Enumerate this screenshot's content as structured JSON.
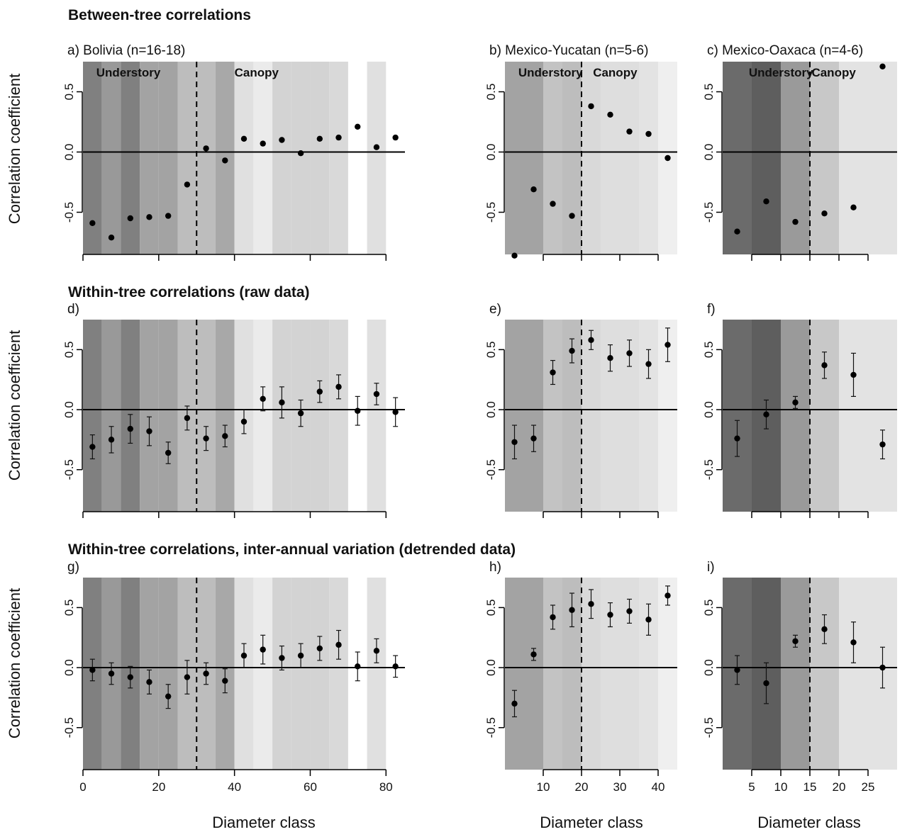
{
  "figure": {
    "row_titles": [
      "Between-tree correlations",
      "Within-tree correlations (raw data)",
      "Within-tree correlations, inter-annual variation (detrended data)"
    ],
    "ylabel": "Correlation coefficient",
    "xlabel": "Diameter class",
    "zone_labels": {
      "understory": "Understory",
      "canopy": "Canopy"
    }
  },
  "chart_data": [
    {
      "id": "a",
      "type": "scatter",
      "title": "a) Bolivia (n=16-18)",
      "xlim": [
        0,
        85
      ],
      "ylim": [
        -0.85,
        0.75
      ],
      "yticks": [
        -0.5,
        0.0,
        0.5
      ],
      "xticks": [],
      "canopy_threshold": 30,
      "x": [
        2.5,
        7.5,
        12.5,
        17.5,
        22.5,
        27.5,
        32.5,
        37.5,
        42.5,
        47.5,
        52.5,
        57.5,
        62.5,
        67.5,
        72.5,
        77.5,
        82.5
      ],
      "y": [
        -0.59,
        -0.71,
        -0.55,
        -0.54,
        -0.53,
        -0.27,
        0.03,
        -0.07,
        0.11,
        0.07,
        0.1,
        -0.01,
        0.11,
        0.12,
        0.21,
        0.04,
        0.12
      ]
    },
    {
      "id": "b",
      "type": "scatter",
      "title": "b) Mexico-Yucatan (n=5-6)",
      "xlim": [
        0,
        45
      ],
      "ylim": [
        -0.85,
        0.75
      ],
      "yticks": [
        -0.5,
        0.0,
        0.5
      ],
      "xticks": [],
      "canopy_threshold": 20,
      "x": [
        2.5,
        7.5,
        12.5,
        17.5,
        22.5,
        27.5,
        32.5,
        37.5,
        42.5
      ],
      "y": [
        -0.86,
        -0.31,
        -0.43,
        -0.53,
        0.38,
        0.31,
        0.17,
        0.15,
        -0.05
      ]
    },
    {
      "id": "c",
      "type": "scatter",
      "title": "c) Mexico-Oaxaca (n=4-6)",
      "xlim": [
        0,
        30
      ],
      "ylim": [
        -0.85,
        0.75
      ],
      "yticks": [
        -0.5,
        0.0,
        0.5
      ],
      "xticks": [],
      "canopy_threshold": 15,
      "x": [
        2.5,
        7.5,
        12.5,
        17.5,
        22.5,
        27.5
      ],
      "y": [
        -0.66,
        -0.41,
        -0.58,
        -0.51,
        -0.46,
        0.71
      ]
    },
    {
      "id": "d",
      "type": "scatter",
      "title": "d)",
      "xlim": [
        0,
        85
      ],
      "ylim": [
        -0.85,
        0.75
      ],
      "yticks": [
        -0.5,
        0.0,
        0.5
      ],
      "xticks": [],
      "canopy_threshold": 30,
      "x": [
        2.5,
        7.5,
        12.5,
        17.5,
        22.5,
        27.5,
        32.5,
        37.5,
        42.5,
        47.5,
        52.5,
        57.5,
        62.5,
        67.5,
        72.5,
        77.5,
        82.5
      ],
      "y": [
        -0.31,
        -0.25,
        -0.16,
        -0.18,
        -0.36,
        -0.07,
        -0.24,
        -0.22,
        -0.1,
        0.09,
        0.06,
        -0.03,
        0.15,
        0.19,
        -0.01,
        0.13,
        -0.02
      ],
      "err": [
        0.1,
        0.11,
        0.12,
        0.12,
        0.09,
        0.1,
        0.1,
        0.09,
        0.1,
        0.1,
        0.13,
        0.11,
        0.09,
        0.1,
        0.12,
        0.09,
        0.12
      ]
    },
    {
      "id": "e",
      "type": "scatter",
      "title": "e)",
      "xlim": [
        0,
        45
      ],
      "ylim": [
        -0.85,
        0.75
      ],
      "yticks": [
        -0.5,
        0.0,
        0.5
      ],
      "xticks": [],
      "canopy_threshold": 20,
      "x": [
        2.5,
        7.5,
        12.5,
        17.5,
        22.5,
        27.5,
        32.5,
        37.5,
        42.5
      ],
      "y": [
        -0.27,
        -0.24,
        0.31,
        0.49,
        0.58,
        0.43,
        0.47,
        0.38,
        0.54
      ],
      "err": [
        0.14,
        0.11,
        0.1,
        0.1,
        0.08,
        0.11,
        0.11,
        0.12,
        0.14
      ]
    },
    {
      "id": "f",
      "type": "scatter",
      "title": "f)",
      "xlim": [
        0,
        30
      ],
      "ylim": [
        -0.85,
        0.75
      ],
      "yticks": [
        -0.5,
        0.0,
        0.5
      ],
      "xticks": [],
      "canopy_threshold": 15,
      "x": [
        2.5,
        7.5,
        12.5,
        17.5,
        22.5,
        27.5
      ],
      "y": [
        -0.24,
        -0.04,
        0.06,
        0.37,
        0.29,
        -0.29
      ],
      "err": [
        0.15,
        0.12,
        0.05,
        0.11,
        0.18,
        0.12
      ]
    },
    {
      "id": "g",
      "type": "scatter",
      "title": "g)",
      "xlim": [
        0,
        85
      ],
      "ylim": [
        -0.85,
        0.75
      ],
      "yticks": [
        -0.5,
        0.0,
        0.5
      ],
      "xticks": [
        0,
        20,
        40,
        60,
        80
      ],
      "canopy_threshold": 30,
      "x": [
        2.5,
        7.5,
        12.5,
        17.5,
        22.5,
        27.5,
        32.5,
        37.5,
        42.5,
        47.5,
        52.5,
        57.5,
        62.5,
        67.5,
        72.5,
        77.5,
        82.5
      ],
      "y": [
        -0.02,
        -0.05,
        -0.08,
        -0.12,
        -0.24,
        -0.08,
        -0.05,
        -0.11,
        0.1,
        0.15,
        0.08,
        0.1,
        0.16,
        0.19,
        0.01,
        0.14,
        0.01
      ],
      "err": [
        0.09,
        0.09,
        0.09,
        0.1,
        0.1,
        0.14,
        0.09,
        0.1,
        0.1,
        0.12,
        0.1,
        0.1,
        0.1,
        0.12,
        0.12,
        0.1,
        0.09
      ]
    },
    {
      "id": "h",
      "type": "scatter",
      "title": "h)",
      "xlim": [
        0,
        45
      ],
      "ylim": [
        -0.85,
        0.75
      ],
      "yticks": [
        -0.5,
        0.0,
        0.5
      ],
      "xticks": [
        10,
        20,
        30,
        40
      ],
      "canopy_threshold": 20,
      "x": [
        2.5,
        7.5,
        12.5,
        17.5,
        22.5,
        27.5,
        32.5,
        37.5,
        42.5
      ],
      "y": [
        -0.3,
        0.11,
        0.42,
        0.48,
        0.53,
        0.44,
        0.47,
        0.4,
        0.6
      ],
      "err": [
        0.11,
        0.05,
        0.1,
        0.14,
        0.12,
        0.1,
        0.1,
        0.13,
        0.08
      ]
    },
    {
      "id": "i",
      "type": "scatter",
      "title": "i)",
      "xlim": [
        0,
        30
      ],
      "ylim": [
        -0.85,
        0.75
      ],
      "yticks": [
        -0.5,
        0.0,
        0.5
      ],
      "xticks": [
        5,
        10,
        15,
        20,
        25
      ],
      "canopy_threshold": 15,
      "x": [
        2.5,
        7.5,
        12.5,
        17.5,
        22.5,
        27.5
      ],
      "y": [
        -0.02,
        -0.13,
        0.22,
        0.32,
        0.21,
        0.0
      ],
      "err": [
        0.12,
        0.17,
        0.05,
        0.12,
        0.17,
        0.17
      ]
    }
  ],
  "backgrounds": {
    "bolivia": {
      "bands": [
        [
          0,
          5
        ],
        [
          5,
          10
        ],
        [
          10,
          15
        ],
        [
          15,
          20
        ],
        [
          20,
          25
        ],
        [
          25,
          30
        ],
        [
          30,
          35
        ],
        [
          35,
          40
        ],
        [
          40,
          45
        ],
        [
          45,
          50
        ],
        [
          50,
          55
        ],
        [
          55,
          60
        ],
        [
          60,
          65
        ],
        [
          65,
          70
        ],
        [
          75,
          80
        ]
      ],
      "colors": [
        "#808080",
        "#999999",
        "#808080",
        "#a3a3a3",
        "#a3a3a3",
        "#bdbdbd",
        "#bdbdbd",
        "#a8a8a8",
        "#e0e0e0",
        "#ebebeb",
        "#d3d3d3",
        "#d3d3d3",
        "#d3d3d3",
        "#d9d9d9",
        "#e0e0e0"
      ]
    },
    "yucatan": {
      "bands": [
        [
          0,
          5
        ],
        [
          5,
          10
        ],
        [
          10,
          15
        ],
        [
          15,
          20
        ],
        [
          20,
          25
        ],
        [
          25,
          30
        ],
        [
          30,
          35
        ],
        [
          35,
          40
        ],
        [
          40,
          45
        ]
      ],
      "colors": [
        "#a3a3a3",
        "#a3a3a3",
        "#c3c3c3",
        "#bdbdbd",
        "#d9d9d9",
        "#dedede",
        "#dedede",
        "#e3e3e3",
        "#efefef"
      ]
    },
    "oaxaca": {
      "bands": [
        [
          0,
          5
        ],
        [
          5,
          10
        ],
        [
          10,
          15
        ],
        [
          15,
          20
        ],
        [
          20,
          25
        ],
        [
          25,
          30
        ]
      ],
      "colors": [
        "#6b6b6b",
        "#5e5e5e",
        "#9a9a9a",
        "#c8c8c8",
        "#e3e3e3",
        "#e3e3e3"
      ]
    }
  }
}
